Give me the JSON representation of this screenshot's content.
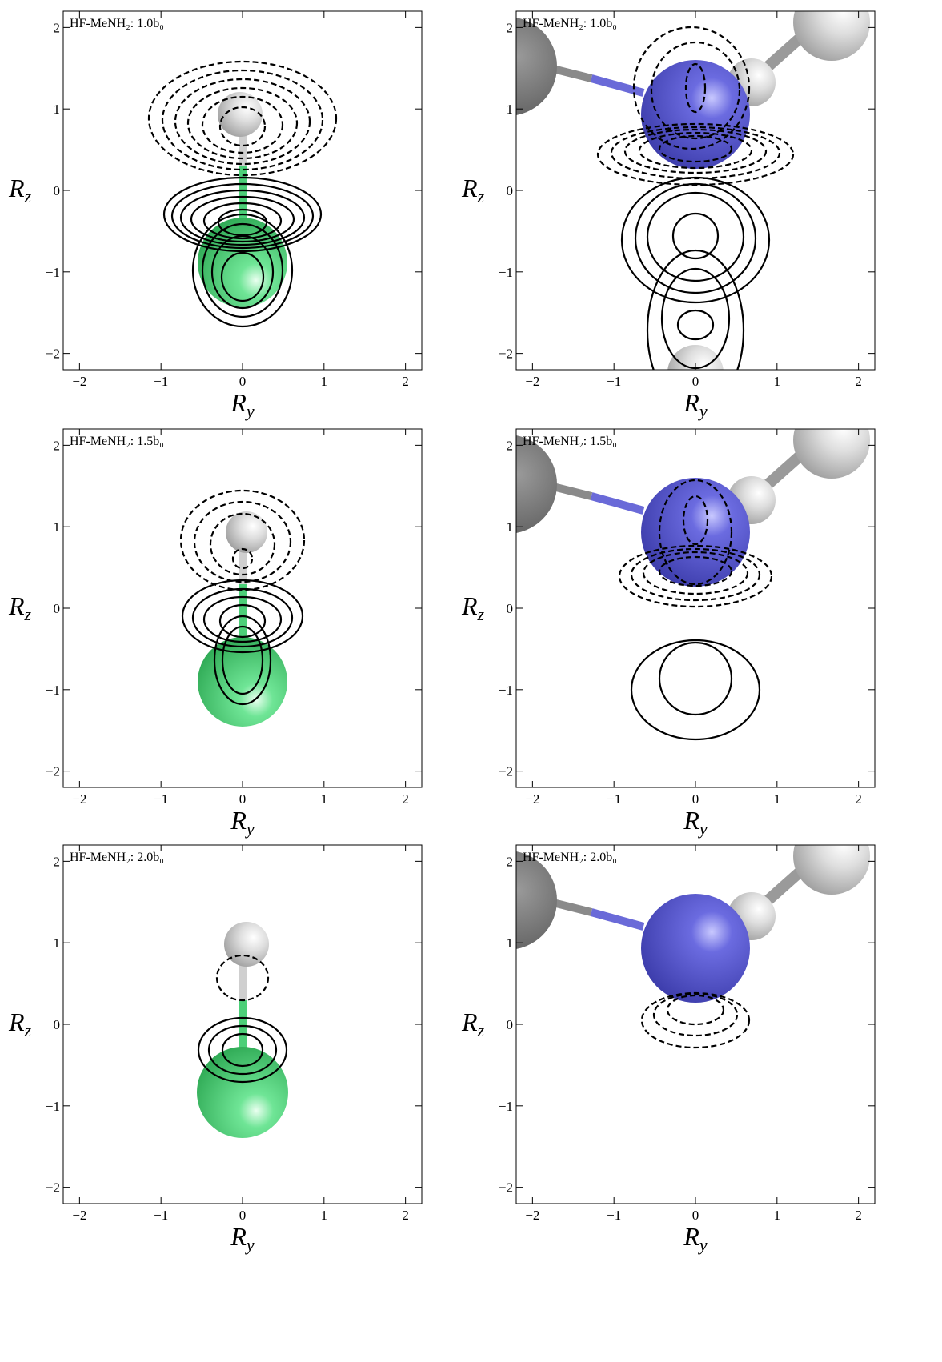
{
  "chart_data": [
    {
      "type": "contour",
      "annotation": "HF-MeNH₂: 1.0b₀",
      "xlabel": "R",
      "xlabel_sub": "y",
      "ylabel": "R",
      "ylabel_sub": "z",
      "xlim": [
        -2.2,
        2.2
      ],
      "ylim": [
        -2.2,
        2.2
      ],
      "xticks": [
        -2,
        -1,
        0,
        1,
        2
      ],
      "yticks": [
        -2,
        -1,
        0,
        1,
        2
      ]
    },
    {
      "type": "contour",
      "annotation": "HF-MeNH₂: 1.0b₀",
      "xlabel": "R",
      "xlabel_sub": "y",
      "ylabel": "R",
      "ylabel_sub": "z",
      "xlim": [
        -2.2,
        2.2
      ],
      "ylim": [
        -2.2,
        2.2
      ],
      "xticks": [
        -2,
        -1,
        0,
        1,
        2
      ],
      "yticks": [
        -2,
        -1,
        0,
        1,
        2
      ]
    },
    {
      "type": "contour",
      "annotation": "HF-MeNH₂: 1.5b₀",
      "xlabel": "R",
      "xlabel_sub": "y",
      "ylabel": "R",
      "ylabel_sub": "z",
      "xlim": [
        -2.2,
        2.2
      ],
      "ylim": [
        -2.2,
        2.2
      ],
      "xticks": [
        -2,
        -1,
        0,
        1,
        2
      ],
      "yticks": [
        -2,
        -1,
        0,
        1,
        2
      ]
    },
    {
      "type": "contour",
      "annotation": "HF-MeNH₂: 1.5b₀",
      "xlabel": "R",
      "xlabel_sub": "y",
      "ylabel": "R",
      "ylabel_sub": "z",
      "xlim": [
        -2.2,
        2.2
      ],
      "ylim": [
        -2.2,
        2.2
      ],
      "xticks": [
        -2,
        -1,
        0,
        1,
        2
      ],
      "yticks": [
        -2,
        -1,
        0,
        1,
        2
      ]
    },
    {
      "type": "contour",
      "annotation": "HF-MeNH₂: 2.0b₀",
      "xlabel": "R",
      "xlabel_sub": "y",
      "ylabel": "R",
      "ylabel_sub": "z",
      "xlim": [
        -2.2,
        2.2
      ],
      "ylim": [
        -2.2,
        2.2
      ],
      "xticks": [
        -2,
        -1,
        0,
        1,
        2
      ],
      "yticks": [
        -2,
        -1,
        0,
        1,
        2
      ]
    },
    {
      "type": "contour",
      "annotation": "HF-MeNH₂: 2.0b₀",
      "xlabel": "R",
      "xlabel_sub": "y",
      "ylabel": "R",
      "ylabel_sub": "z",
      "xlim": [
        -2.2,
        2.2
      ],
      "ylim": [
        -2.2,
        2.2
      ],
      "xticks": [
        -2,
        -1,
        0,
        1,
        2
      ],
      "yticks": [
        -2,
        -1,
        0,
        1,
        2
      ]
    }
  ]
}
